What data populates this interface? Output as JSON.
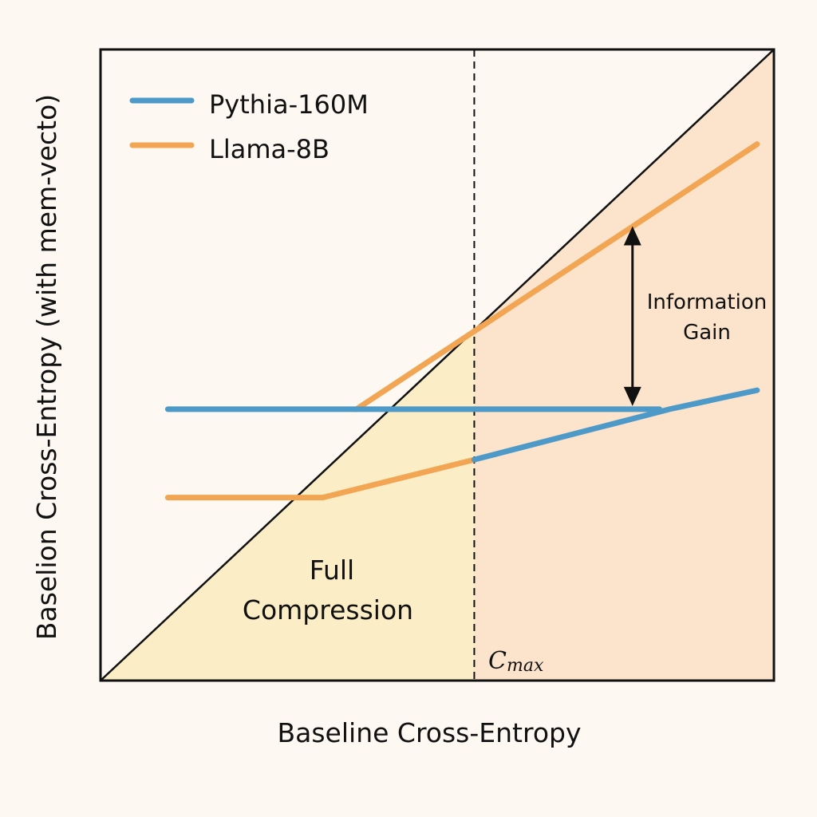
{
  "chart_data": {
    "type": "line",
    "title": "",
    "xlabel": "Baseline Cross-Entropy",
    "ylabel": "Baselion Cross-Entropy (with mem-vecto)",
    "xlim": [
      0,
      10
    ],
    "ylim": [
      0,
      10
    ],
    "grid": false,
    "legend_position": "top-left",
    "colors": {
      "background": "#fdf8f1",
      "full_compression_region": "#fbedc6",
      "info_region": "#fbe3cc",
      "pythia": "#4d9ac9",
      "llama": "#f2a552",
      "axis": "#111111"
    },
    "series": [
      {
        "name": "Pythia-160M",
        "segments": [
          {
            "x": [
              1.0,
              8.3
            ],
            "y": [
              4.3,
              4.3
            ],
            "color": "pythia"
          },
          {
            "x": [
              5.55,
              8.45,
              9.75
            ],
            "y": [
              3.5,
              4.3,
              4.6
            ],
            "color": "pythia"
          }
        ]
      },
      {
        "name": "Llama-8B",
        "segments": [
          {
            "x": [
              3.8,
              9.75
            ],
            "y": [
              4.3,
              8.5
            ],
            "color": "llama"
          },
          {
            "x": [
              1.0,
              3.3,
              5.55
            ],
            "y": [
              2.9,
              2.9,
              3.5
            ],
            "color": "llama"
          }
        ]
      }
    ],
    "reference_line": {
      "x": [
        0,
        10
      ],
      "y": [
        0,
        10
      ],
      "label": ""
    },
    "threshold": {
      "x": 5.55,
      "label_main": "C",
      "label_sub": "max"
    },
    "annotations": {
      "full_compression": [
        "Full",
        "Compression"
      ],
      "information_gain": [
        "Information",
        "Gain"
      ],
      "arrow": {
        "x": 7.9,
        "y_top": 7.2,
        "y_bottom": 4.35
      }
    }
  }
}
